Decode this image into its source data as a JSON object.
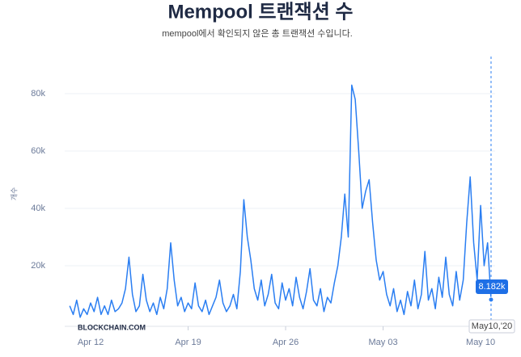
{
  "chart_data": {
    "type": "line",
    "title": "Mempool 트랜잭션 수",
    "subtitle": "mempool에서 확인되지 않은 총 트랜잭션 수입니다.",
    "y_label": "개수",
    "watermark": "BLOCKCHAIN.COM",
    "categories": [
      null,
      null,
      null,
      null,
      null,
      null,
      "Apr 12",
      null,
      null,
      null,
      null,
      null,
      null,
      null,
      null,
      null,
      null,
      null,
      null,
      null,
      null,
      null,
      null,
      null,
      null,
      null,
      null,
      null,
      null,
      null,
      null,
      null,
      null,
      null,
      "Apr 19",
      null,
      null,
      null,
      null,
      null,
      null,
      null,
      null,
      null,
      null,
      null,
      null,
      null,
      null,
      null,
      null,
      null,
      null,
      null,
      null,
      null,
      null,
      null,
      null,
      null,
      null,
      null,
      "Apr 26",
      null,
      null,
      null,
      null,
      null,
      null,
      null,
      null,
      null,
      null,
      null,
      null,
      null,
      null,
      null,
      null,
      null,
      null,
      null,
      null,
      null,
      null,
      null,
      null,
      null,
      null,
      null,
      "May 03",
      null,
      null,
      null,
      null,
      null,
      null,
      null,
      null,
      null,
      null,
      null,
      null,
      null,
      null,
      null,
      null,
      null,
      null,
      null,
      null,
      null,
      null,
      null,
      null,
      null,
      null,
      null,
      "May 10",
      null,
      null,
      null
    ],
    "series": [
      {
        "name": "Mempool",
        "color": "#2a7ef2",
        "values": [
          6000,
          3000,
          8000,
          2000,
          5000,
          3000,
          7000,
          4000,
          9000,
          3000,
          6000,
          3000,
          8000,
          4000,
          5000,
          7000,
          12000,
          23000,
          10000,
          4000,
          6000,
          17000,
          8000,
          4000,
          7000,
          3000,
          9000,
          5000,
          12000,
          28000,
          15000,
          6000,
          9000,
          4000,
          7000,
          5000,
          14000,
          6000,
          4000,
          8000,
          3000,
          6000,
          9000,
          15000,
          7000,
          4000,
          6000,
          10000,
          5000,
          18000,
          43000,
          30000,
          22000,
          12000,
          8000,
          15000,
          6000,
          10000,
          17000,
          7000,
          5000,
          14000,
          8000,
          12000,
          6000,
          16000,
          9000,
          5000,
          11000,
          19000,
          8000,
          6000,
          12000,
          4000,
          9000,
          7000,
          14000,
          20000,
          30000,
          45000,
          30000,
          83000,
          78000,
          60000,
          40000,
          46000,
          50000,
          35000,
          22000,
          15000,
          18000,
          10000,
          6000,
          12000,
          4000,
          8000,
          3000,
          11000,
          6000,
          15000,
          5000,
          10000,
          25000,
          8000,
          12000,
          5000,
          16000,
          9000,
          23000,
          10000,
          6000,
          18000,
          8000,
          15000,
          35000,
          51000,
          28000,
          15000,
          41000,
          20000,
          28000,
          8182
        ]
      }
    ],
    "ylim": [
      0,
      85000
    ],
    "yticks": [
      {
        "value": 20000,
        "label": "20k"
      },
      {
        "value": 40000,
        "label": "40k"
      },
      {
        "value": 60000,
        "label": "60k"
      },
      {
        "value": 80000,
        "label": "80k"
      }
    ],
    "grid": true,
    "tooltip": {
      "value": 8182,
      "value_label": "8.182k",
      "x_label": "May10,'20"
    }
  }
}
